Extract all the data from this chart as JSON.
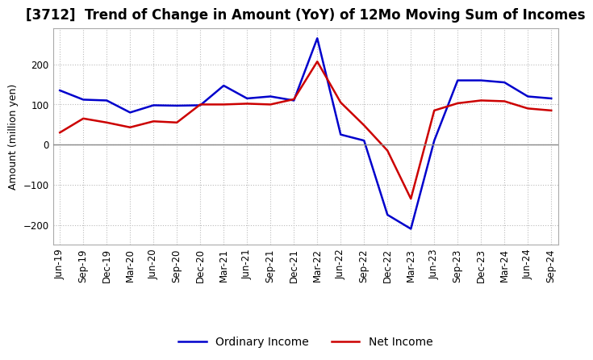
{
  "title": "[3712]  Trend of Change in Amount (YoY) of 12Mo Moving Sum of Incomes",
  "ylabel": "Amount (million yen)",
  "x_labels": [
    "Jun-19",
    "Sep-19",
    "Dec-19",
    "Mar-20",
    "Jun-20",
    "Sep-20",
    "Dec-20",
    "Mar-21",
    "Jun-21",
    "Sep-21",
    "Dec-21",
    "Mar-22",
    "Jun-22",
    "Sep-22",
    "Dec-22",
    "Mar-23",
    "Jun-23",
    "Sep-23",
    "Dec-23",
    "Mar-24",
    "Jun-24",
    "Sep-24"
  ],
  "ordinary_income": [
    135,
    112,
    110,
    80,
    98,
    97,
    98,
    147,
    115,
    120,
    110,
    265,
    25,
    10,
    -175,
    -210,
    10,
    160,
    160,
    155,
    120,
    115
  ],
  "net_income": [
    30,
    65,
    55,
    43,
    58,
    55,
    100,
    100,
    102,
    100,
    113,
    207,
    105,
    48,
    -15,
    -135,
    85,
    103,
    110,
    108,
    90,
    85
  ],
  "ordinary_income_color": "#0000cc",
  "net_income_color": "#cc0000",
  "ylim": [
    -250,
    290
  ],
  "yticks": [
    -200,
    -100,
    0,
    100,
    200
  ],
  "grid_color": "#bbbbbb",
  "zero_line_color": "#888888",
  "background_color": "#ffffff",
  "title_fontsize": 12,
  "axis_fontsize": 9,
  "tick_fontsize": 8.5,
  "legend_fontsize": 10,
  "linewidth": 1.8
}
